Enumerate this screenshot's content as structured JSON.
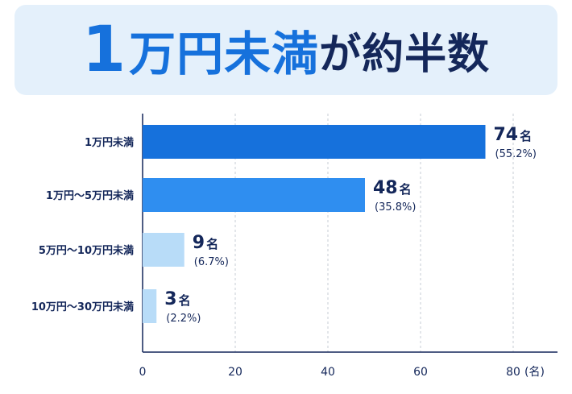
{
  "title": {
    "number": "1",
    "emphasis": "万円未満",
    "rest": "が約半数"
  },
  "colors": {
    "navy": "#14275a",
    "accent": "#1671dc",
    "banner_bg": "#e4f0fb"
  },
  "chart_data": {
    "type": "bar",
    "orientation": "horizontal",
    "categories": [
      "1万円未満",
      "1万円〜5万円未満",
      "5万円〜10万円未満",
      "10万円〜30万円未満"
    ],
    "values": [
      74,
      48,
      9,
      3
    ],
    "value_labels": [
      "74",
      "48",
      "9",
      "3"
    ],
    "value_unit": "名",
    "percent_labels": [
      "(55.2%)",
      "(35.8%)",
      "(6.7%)",
      "(2.2%)"
    ],
    "bar_colors": [
      "#1671dc",
      "#2f8ef0",
      "#b8dcf8",
      "#b8dcf8"
    ],
    "x_ticks": [
      "0",
      "20",
      "40",
      "60",
      "80"
    ],
    "x_unit": "(名)",
    "xlim": [
      0,
      80
    ],
    "grid": true
  }
}
